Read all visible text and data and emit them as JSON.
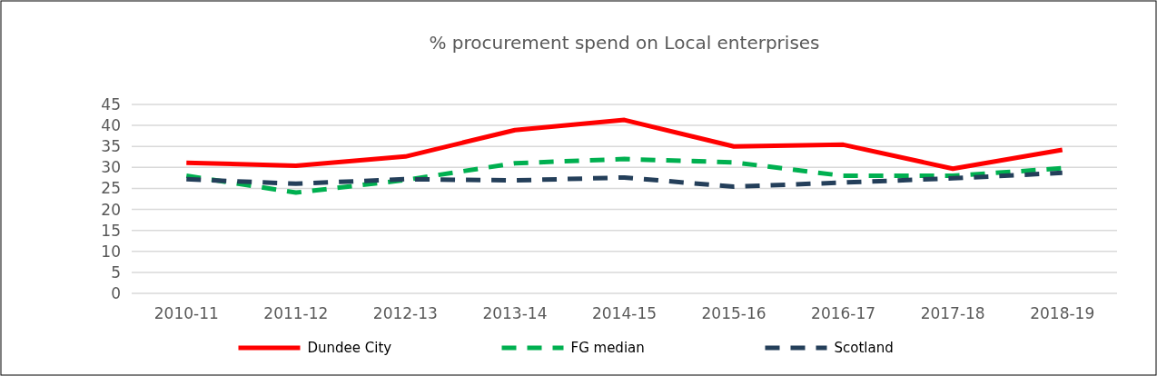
{
  "chart_data": {
    "type": "line",
    "title": "% procurement spend on Local enterprises",
    "categories": [
      "2010-11",
      "2011-12",
      "2012-13",
      "2013-14",
      "2014-15",
      "2015-16",
      "2016-17",
      "2017-18",
      "2018-19"
    ],
    "series": [
      {
        "name": "Dundee City",
        "color": "#ff0000",
        "line_style": "solid",
        "values": [
          31.1,
          30.4,
          32.6,
          38.9,
          41.3,
          35.0,
          35.4,
          29.7,
          34.2
        ]
      },
      {
        "name": "FG median",
        "color": "#00b050",
        "line_style": "dashed",
        "values": [
          28,
          24,
          27,
          31,
          32,
          31.2,
          28,
          28,
          29.8
        ]
      },
      {
        "name": "Scotland",
        "color": "#243f5a",
        "line_style": "dashed",
        "values": [
          27.2,
          26.1,
          27.2,
          26.9,
          27.6,
          25.4,
          26.4,
          27.4,
          28.7
        ]
      }
    ],
    "ylim": [
      0,
      45
    ],
    "yticks": [
      0,
      5,
      10,
      15,
      20,
      25,
      30,
      35,
      40,
      45
    ],
    "grid": "y",
    "legend": "bottom",
    "marker": "none"
  }
}
